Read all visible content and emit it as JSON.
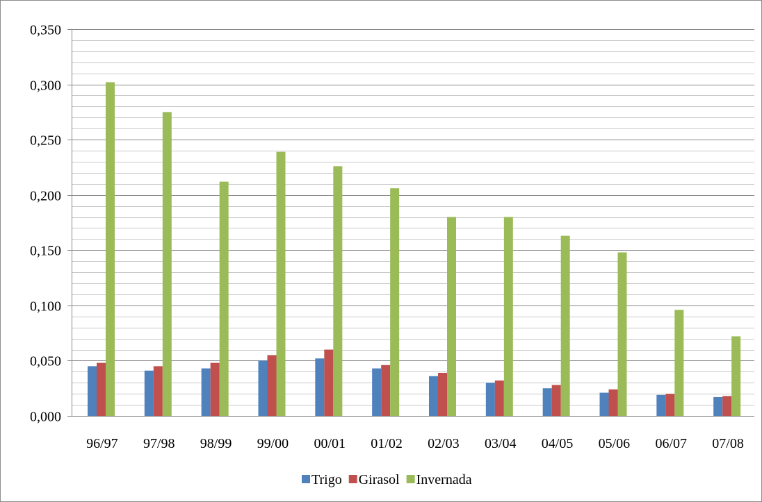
{
  "chart_data": {
    "type": "bar",
    "title": "",
    "xlabel": "",
    "ylabel": "",
    "ylim": [
      0,
      0.35
    ],
    "y_ticks": [
      "0,000",
      "0,050",
      "0,100",
      "0,150",
      "0,200",
      "0,250",
      "0,300",
      "0,350"
    ],
    "y_tick_values": [
      0,
      0.05,
      0.1,
      0.15,
      0.2,
      0.25,
      0.3,
      0.35
    ],
    "y_minor_step": 0.01,
    "grid": true,
    "legend_position": "bottom",
    "categories": [
      "96/97",
      "97/98",
      "98/99",
      "99/00",
      "00/01",
      "01/02",
      "02/03",
      "03/04",
      "04/05",
      "05/06",
      "06/07",
      "07/08"
    ],
    "series": [
      {
        "name": "Trigo",
        "color": "#4f81bd",
        "values": [
          0.045,
          0.041,
          0.043,
          0.05,
          0.052,
          0.043,
          0.036,
          0.03,
          0.025,
          0.021,
          0.019,
          0.017
        ]
      },
      {
        "name": "Girasol",
        "color": "#c0504d",
        "values": [
          0.048,
          0.045,
          0.048,
          0.055,
          0.06,
          0.046,
          0.039,
          0.032,
          0.028,
          0.024,
          0.02,
          0.018
        ]
      },
      {
        "name": "Invernada",
        "color": "#9bbb59",
        "values": [
          0.302,
          0.275,
          0.212,
          0.239,
          0.226,
          0.206,
          0.18,
          0.18,
          0.163,
          0.148,
          0.096,
          0.072
        ]
      }
    ]
  }
}
